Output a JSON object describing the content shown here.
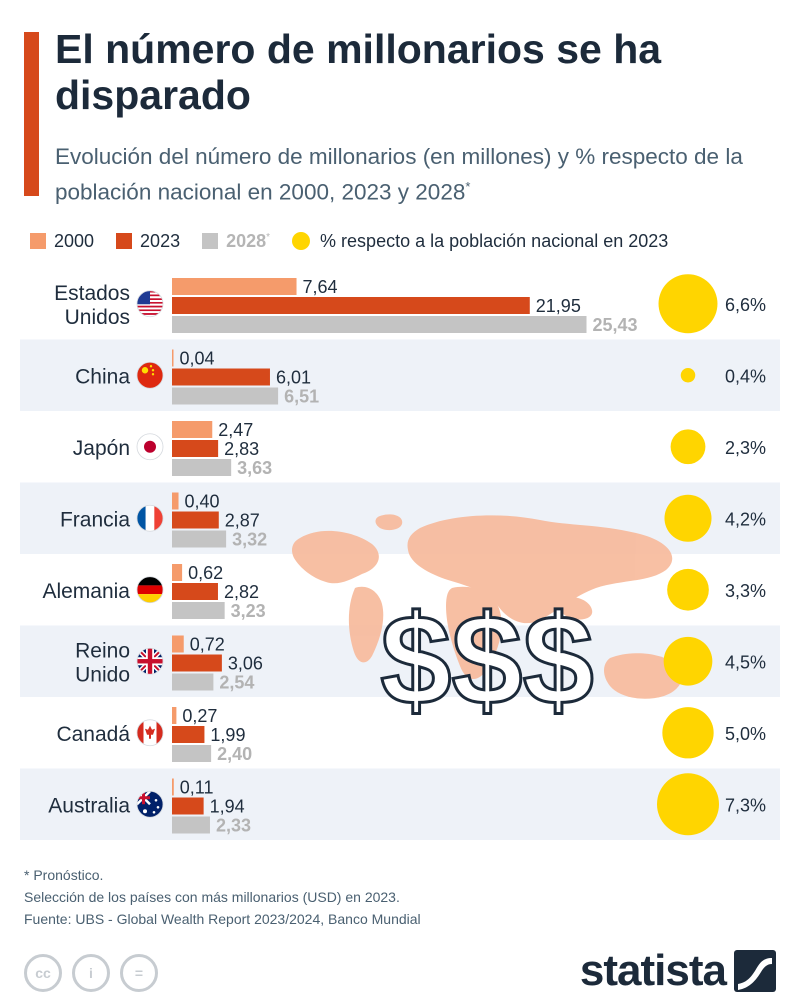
{
  "header": {
    "title": "El número de millonarios se ha disparado",
    "subtitle": "Evolución del número de millonarios (en millones) y % respecto de la población nacional en 2000, 2023 y 2028",
    "subtitle_sup": "*"
  },
  "legend": {
    "items": [
      {
        "label": "2000",
        "color": "#f59b6b"
      },
      {
        "label": "2023",
        "color": "#d6491b"
      },
      {
        "label": "2028",
        "sup": "*",
        "color": "#c4c4c4"
      },
      {
        "label": "% respecto a la población nacional en 2023",
        "color": "#ffd500"
      }
    ]
  },
  "decoration": {
    "dollar_signs": "$$$"
  },
  "chart_data": {
    "type": "bar",
    "orientation": "horizontal",
    "categories": [
      "Estados Unidos",
      "China",
      "Japón",
      "Francia",
      "Alemania",
      "Reino Unido",
      "Canadá",
      "Australia"
    ],
    "category_lines": [
      [
        "Estados",
        "Unidos"
      ],
      [
        "China"
      ],
      [
        "Japón"
      ],
      [
        "Francia"
      ],
      [
        "Alemania"
      ],
      [
        "Reino",
        "Unido"
      ],
      [
        "Canadá"
      ],
      [
        "Australia"
      ]
    ],
    "flags": [
      "us-flag-icon",
      "china-flag-icon",
      "japan-flag-icon",
      "france-flag-icon",
      "germany-flag-icon",
      "uk-flag-icon",
      "canada-flag-icon",
      "australia-flag-icon"
    ],
    "series": [
      {
        "name": "2000",
        "color": "#f59b6b",
        "values": [
          7.64,
          0.04,
          2.47,
          0.4,
          0.62,
          0.72,
          0.27,
          0.11
        ],
        "labels": [
          "7,64",
          "0,04",
          "2,47",
          "0,40",
          "0,62",
          "0,72",
          "0,27",
          "0,11"
        ]
      },
      {
        "name": "2023",
        "color": "#d6491b",
        "values": [
          21.95,
          6.01,
          2.83,
          2.87,
          2.82,
          3.06,
          1.99,
          1.94
        ],
        "labels": [
          "21,95",
          "6,01",
          "2,83",
          "2,87",
          "2,82",
          "3,06",
          "1,99",
          "1,94"
        ]
      },
      {
        "name": "2028",
        "color": "#c4c4c4",
        "values": [
          25.43,
          6.51,
          3.63,
          3.32,
          3.23,
          2.54,
          2.4,
          2.33
        ],
        "labels": [
          "25,43",
          "6,51",
          "3,63",
          "3,32",
          "3,23",
          "2,54",
          "2,40",
          "2,33"
        ]
      }
    ],
    "population_pct": {
      "name": "% respecto a la población nacional en 2023",
      "color": "#ffd500",
      "values": [
        6.6,
        0.4,
        2.3,
        4.2,
        3.3,
        4.5,
        5.0,
        7.3
      ],
      "labels": [
        "6,6%",
        "0,4%",
        "2,3%",
        "4,2%",
        "3,3%",
        "4,5%",
        "5,0%",
        "7,3%"
      ]
    },
    "row_shading": [
      "#ffffff",
      "#eef2f8"
    ]
  },
  "footer": {
    "note1": "* Pronóstico.",
    "note2": "Selección de los países con más millonarios (USD) en 2023.",
    "source": "Fuente: UBS - Global Wealth Report 2023/2024, Banco Mundial"
  },
  "license_icons": [
    "cc-icon",
    "attribution-icon",
    "no-derivatives-icon"
  ],
  "license_glyphs": [
    "cc",
    "i",
    "="
  ],
  "brand": {
    "name": "statista"
  }
}
